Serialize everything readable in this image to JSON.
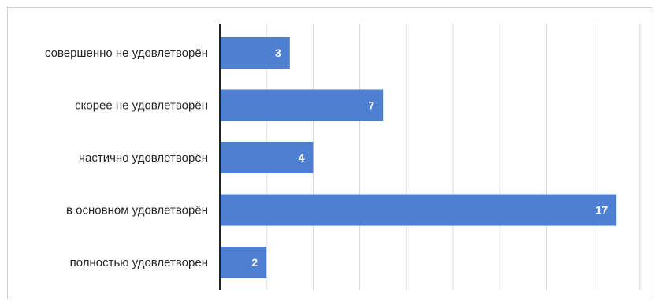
{
  "chart_data": {
    "type": "bar",
    "orientation": "horizontal",
    "categories": [
      "совершенно не удовлетворён",
      "скорее не удовлетворён",
      "частично удовлетворён",
      "в основном удовлетворён",
      "полностью удовлетворен"
    ],
    "values": [
      3,
      7,
      4,
      17,
      2
    ],
    "data_labels": [
      "3",
      "7",
      "4",
      "17",
      "2"
    ],
    "title": "",
    "xlabel": "",
    "ylabel": "",
    "xlim": [
      0,
      18
    ],
    "grid": true,
    "legend": "none",
    "colors": {
      "bar": "#4f7fd1",
      "grid": "#d9d9d9",
      "axis": "#222222",
      "label_text": "#262626",
      "data_label_text": "#ffffff",
      "frame": "#d0d0d0"
    }
  }
}
